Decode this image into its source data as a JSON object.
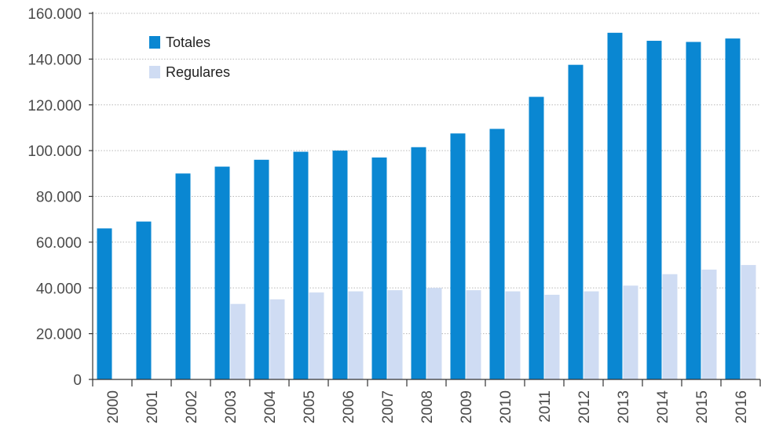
{
  "chart_data": {
    "type": "bar",
    "title": "",
    "xlabel": "",
    "ylabel": "",
    "categories": [
      "2000",
      "2001",
      "2002",
      "2003",
      "2004",
      "2005",
      "2006",
      "2007",
      "2008",
      "2009",
      "2010",
      "2011",
      "2012",
      "2013",
      "2014",
      "2015",
      "2016"
    ],
    "series": [
      {
        "name": "Totales",
        "color": "#0a87d2",
        "values": [
          66000,
          69000,
          90000,
          93000,
          96000,
          99500,
          100000,
          97000,
          101500,
          107500,
          109500,
          123500,
          137500,
          151500,
          148000,
          147500,
          149000
        ]
      },
      {
        "name": "Regulares",
        "color": "#cfdcf3",
        "values": [
          null,
          null,
          null,
          33000,
          35000,
          38000,
          38500,
          39000,
          40000,
          39000,
          38500,
          37000,
          38500,
          41000,
          46000,
          48000,
          50000
        ]
      }
    ],
    "ylim": [
      0,
      160000
    ],
    "yticks": [
      0,
      20000,
      40000,
      60000,
      80000,
      100000,
      120000,
      140000,
      160000
    ],
    "ytick_labels": [
      "0",
      "20.000",
      "40.000",
      "60.000",
      "80.000",
      "100.000",
      "120.000",
      "140.000",
      "160.000"
    ],
    "grid": true,
    "legend_position": "top-left"
  }
}
